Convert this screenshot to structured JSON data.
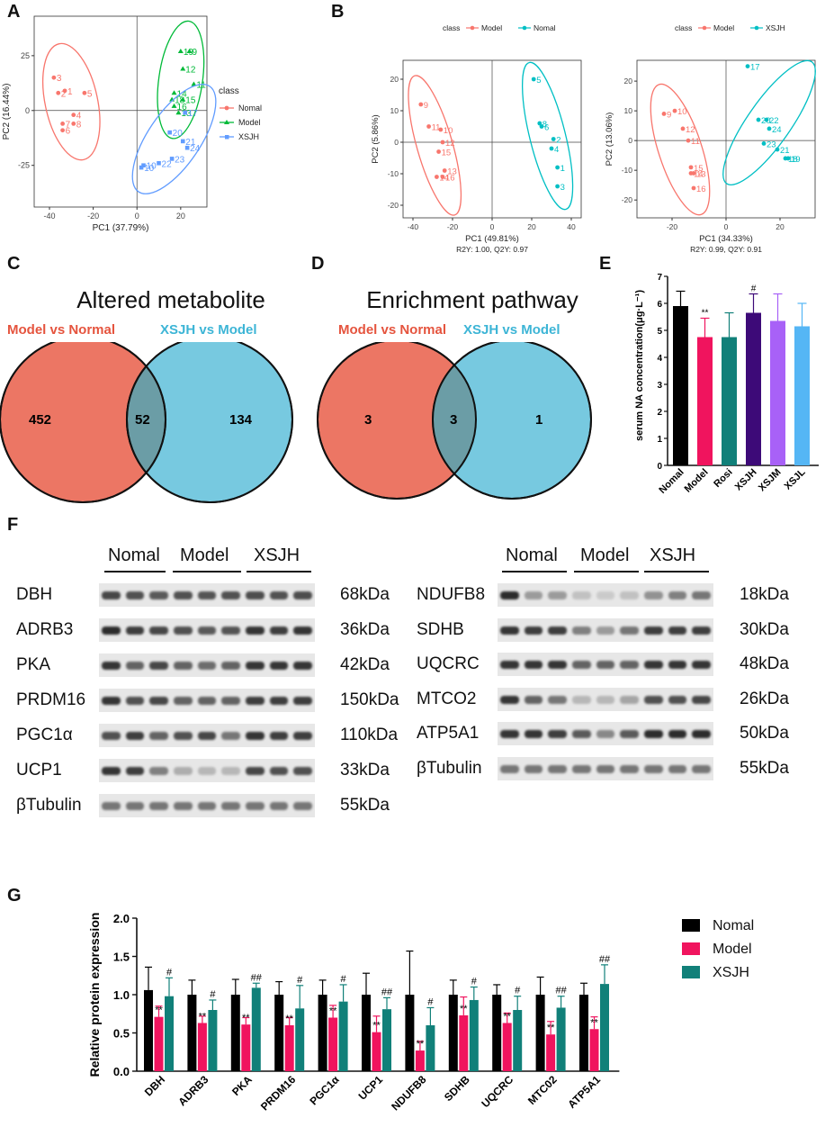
{
  "panel_letters": [
    "A",
    "B",
    "C",
    "D",
    "E",
    "F",
    "G"
  ],
  "colors": {
    "normal": "#f8766d",
    "model_green": "#00ba38",
    "xsjh_blue": "#619cff",
    "nomal_teal": "#00bfc4",
    "venn_red": "#ec7664",
    "venn_blue": "#77c9e0",
    "venn_overlap": "#6b9da6",
    "bar_black": "#000000",
    "bar_pink": "#f0145e",
    "bar_teal": "#118079",
    "bar_purple": "#3d0a78",
    "bar_lavender": "#a861f7",
    "bar_lightblue": "#55b6f5"
  },
  "chart_data": [
    {
      "id": "A",
      "type": "scatter",
      "xlabel": "PC1 (37.79%)",
      "ylabel": "PC2 (16.44%)",
      "xticks": [
        -40,
        -20,
        0,
        20
      ],
      "yticks": [
        -25,
        0,
        25
      ],
      "xlim": [
        -47,
        32
      ],
      "ylim": [
        -44,
        43
      ],
      "legend_title": "class",
      "series": [
        {
          "name": "Nomal",
          "color": "#f8766d",
          "marker": "circle",
          "points": [
            {
              "x": -38,
              "y": 15,
              "label": "3"
            },
            {
              "x": -36,
              "y": 8,
              "label": "2"
            },
            {
              "x": -33,
              "y": 9,
              "label": "1"
            },
            {
              "x": -24,
              "y": 8,
              "label": "5"
            },
            {
              "x": -29,
              "y": -2,
              "label": "4"
            },
            {
              "x": -34,
              "y": -6,
              "label": "7"
            },
            {
              "x": -29,
              "y": -6,
              "label": "8"
            },
            {
              "x": -34,
              "y": -9,
              "label": "6"
            }
          ],
          "ellipse": {
            "cx": -30,
            "cy": 4,
            "rx": 12,
            "ry": 27,
            "angle": -12
          }
        },
        {
          "name": "Model",
          "color": "#00ba38",
          "marker": "triangle",
          "points": [
            {
              "x": 20,
              "y": 27,
              "label": "19"
            },
            {
              "x": 24,
              "y": 27,
              "label": "9"
            },
            {
              "x": 21,
              "y": 19,
              "label": "12"
            },
            {
              "x": 26,
              "y": 12,
              "label": "11"
            },
            {
              "x": 17,
              "y": 8,
              "label": "14"
            },
            {
              "x": 16,
              "y": 5,
              "label": "18"
            },
            {
              "x": 21,
              "y": 5,
              "label": "15"
            },
            {
              "x": 17,
              "y": 2,
              "label": "16"
            },
            {
              "x": 19,
              "y": -1,
              "label": "13"
            }
          ],
          "ellipse": {
            "cx": 20,
            "cy": 14,
            "rx": 10,
            "ry": 27,
            "angle": 8
          }
        },
        {
          "name": "XSJH",
          "color": "#619cff",
          "marker": "square",
          "points": [
            {
              "x": 22,
              "y": -1,
              "label": "17"
            },
            {
              "x": 15,
              "y": -10,
              "label": "20"
            },
            {
              "x": 21,
              "y": -14,
              "label": "21"
            },
            {
              "x": 23,
              "y": -17,
              "label": "24"
            },
            {
              "x": 16,
              "y": -22,
              "label": "23"
            },
            {
              "x": 10,
              "y": -24,
              "label": "22"
            },
            {
              "x": 3,
              "y": -25,
              "label": "10"
            },
            {
              "x": 2,
              "y": -26,
              "label": "10"
            }
          ],
          "ellipse": {
            "cx": 17,
            "cy": -13,
            "rx": 12,
            "ry": 29,
            "angle": 34
          }
        }
      ]
    },
    {
      "id": "B1",
      "type": "scatter",
      "legend_title": "class",
      "legend": [
        "Model",
        "Nomal"
      ],
      "xlabel": "PC1 (49.81%)",
      "ylabel": "PC2 (5.86%)",
      "footer": "R2Y: 1.00, Q2Y: 0.97",
      "xticks": [
        -40,
        -20,
        0,
        20,
        40
      ],
      "yticks": [
        -20,
        -10,
        0,
        10,
        20
      ],
      "xlim": [
        -45,
        45
      ],
      "ylim": [
        -24,
        26
      ],
      "series": [
        {
          "name": "Model",
          "color": "#f8766d",
          "points": [
            {
              "x": -36,
              "y": 12,
              "label": "9"
            },
            {
              "x": -32,
              "y": 5,
              "label": "11"
            },
            {
              "x": -26,
              "y": 4,
              "label": "10"
            },
            {
              "x": -25,
              "y": 0,
              "label": "12"
            },
            {
              "x": -27,
              "y": -3,
              "label": "15"
            },
            {
              "x": -24,
              "y": -9,
              "label": "13"
            },
            {
              "x": -25,
              "y": -11,
              "label": "16"
            },
            {
              "x": -28,
              "y": -11,
              "label": "14"
            }
          ],
          "ellipse": {
            "cx": -29,
            "cy": -1,
            "rx": 9,
            "ry": 23,
            "angle": -16
          }
        },
        {
          "name": "Nomal",
          "color": "#00bfc4",
          "points": [
            {
              "x": 21,
              "y": 20,
              "label": "5"
            },
            {
              "x": 24,
              "y": 6,
              "label": "8"
            },
            {
              "x": 25,
              "y": 5,
              "label": "6"
            },
            {
              "x": 31,
              "y": 1,
              "label": "2"
            },
            {
              "x": 30,
              "y": -2,
              "label": "4"
            },
            {
              "x": 33,
              "y": -8,
              "label": "1"
            },
            {
              "x": 33,
              "y": -14,
              "label": "3"
            }
          ],
          "ellipse": {
            "cx": 28,
            "cy": 2,
            "rx": 9,
            "ry": 24,
            "angle": -14
          }
        }
      ]
    },
    {
      "id": "B2",
      "type": "scatter",
      "legend_title": "class",
      "legend": [
        "Model",
        "XSJH"
      ],
      "xlabel": "PC1 (34.33%)",
      "ylabel": "PC2 (13.06%)",
      "footer": "R2Y: 0.99, Q2Y: 0.91",
      "xticks": [
        -20,
        0,
        20
      ],
      "yticks": [
        -20,
        -10,
        0,
        10,
        20
      ],
      "xlim": [
        -33,
        33
      ],
      "ylim": [
        -26,
        27
      ],
      "series": [
        {
          "name": "Model",
          "color": "#f8766d",
          "points": [
            {
              "x": -23,
              "y": 9,
              "label": "9"
            },
            {
              "x": -19,
              "y": 10,
              "label": "10"
            },
            {
              "x": -16,
              "y": 4,
              "label": "12"
            },
            {
              "x": -14,
              "y": 0,
              "label": "11"
            },
            {
              "x": -13,
              "y": -9,
              "label": "15"
            },
            {
              "x": -12,
              "y": -11,
              "label": "13"
            },
            {
              "x": -13,
              "y": -11,
              "label": "14"
            },
            {
              "x": -12,
              "y": -16,
              "label": "16"
            }
          ],
          "ellipse": {
            "cx": -17,
            "cy": -3,
            "rx": 8,
            "ry": 23,
            "angle": -18
          }
        },
        {
          "name": "XSJH",
          "color": "#00bfc4",
          "points": [
            {
              "x": 8,
              "y": 25,
              "label": "17"
            },
            {
              "x": 12,
              "y": 7,
              "label": "20"
            },
            {
              "x": 15,
              "y": 7,
              "label": "22"
            },
            {
              "x": 16,
              "y": 4,
              "label": "24"
            },
            {
              "x": 14,
              "y": -1,
              "label": "23"
            },
            {
              "x": 19,
              "y": -3,
              "label": "21"
            },
            {
              "x": 22,
              "y": -6,
              "label": "18"
            },
            {
              "x": 23,
              "y": -6,
              "label": "19"
            }
          ],
          "ellipse": {
            "cx": 16,
            "cy": 6,
            "rx": 8,
            "ry": 25,
            "angle": 35
          }
        }
      ]
    },
    {
      "id": "E",
      "type": "bar",
      "ylabel": "serum NA concentration(μg·L⁻¹)",
      "yticks": [
        0,
        1,
        2,
        3,
        4,
        5,
        6,
        7
      ],
      "ylim": [
        0,
        7
      ],
      "categories": [
        "Nomal",
        "Model",
        "Rosi",
        "XSJH",
        "XSJM",
        "XSJL"
      ],
      "values": [
        5.9,
        4.75,
        4.75,
        5.65,
        5.35,
        5.15
      ],
      "errors": [
        0.55,
        0.7,
        0.9,
        0.7,
        1.0,
        0.85
      ],
      "colors": [
        "#000000",
        "#f0145e",
        "#118079",
        "#3d0a78",
        "#a861f7",
        "#55b6f5"
      ],
      "annotations": [
        "",
        "**",
        "",
        "#",
        "",
        ""
      ]
    },
    {
      "id": "G",
      "type": "bar",
      "ylabel": "Relative protein expression",
      "yticks": [
        "0.0",
        "0.5",
        "1.0",
        "1.5",
        "2.0"
      ],
      "ylim": [
        0,
        2.0
      ],
      "categories": [
        "DBH",
        "ADRB3",
        "PKA",
        "PRDM16",
        "PGC1α",
        "UCP1",
        "NDUFB8",
        "SDHB",
        "UQCRC",
        "MTC02",
        "ATP5A1"
      ],
      "series": [
        {
          "name": "Nomal",
          "color": "#000000",
          "values": [
            1.06,
            1.0,
            1.0,
            1.0,
            1.0,
            1.0,
            1.0,
            1.0,
            1.0,
            1.0,
            1.0
          ],
          "errors": [
            0.3,
            0.19,
            0.2,
            0.17,
            0.19,
            0.28,
            0.57,
            0.19,
            0.13,
            0.23,
            0.15
          ],
          "annotations": [
            "",
            "",
            "",
            "",
            "",
            "",
            "",
            "",
            "",
            "",
            ""
          ]
        },
        {
          "name": "Model",
          "color": "#f0145e",
          "values": [
            0.71,
            0.63,
            0.61,
            0.6,
            0.7,
            0.51,
            0.27,
            0.73,
            0.63,
            0.48,
            0.55
          ],
          "errors": [
            0.14,
            0.09,
            0.09,
            0.1,
            0.16,
            0.21,
            0.12,
            0.24,
            0.13,
            0.17,
            0.16
          ],
          "annotations": [
            "**",
            "**",
            "**",
            "**",
            "**",
            "**",
            "**",
            "**",
            "**",
            "**",
            "**"
          ]
        },
        {
          "name": "XSJH",
          "color": "#118079",
          "values": [
            0.98,
            0.8,
            1.09,
            0.82,
            0.91,
            0.81,
            0.6,
            0.93,
            0.8,
            0.83,
            1.14
          ],
          "errors": [
            0.24,
            0.13,
            0.06,
            0.3,
            0.22,
            0.15,
            0.23,
            0.17,
            0.18,
            0.15,
            0.25
          ],
          "annotations": [
            "#",
            "#",
            "##",
            "#",
            "#",
            "##",
            "#",
            "#",
            "#",
            "##",
            "##"
          ]
        }
      ]
    }
  ],
  "venn": [
    {
      "id": "C",
      "title": "Altered metabolite",
      "left_label": "Model vs Normal",
      "right_label": "XSJH vs Model",
      "left_only": "452",
      "overlap": "52",
      "right_only": "134"
    },
    {
      "id": "D",
      "title": "Enrichment pathway",
      "left_label": "Model vs Normal",
      "right_label": "XSJH vs Model",
      "left_only": "3",
      "overlap": "3",
      "right_only": "1"
    }
  ],
  "blots": {
    "groups": [
      "Nomal",
      "Model",
      "XSJH"
    ],
    "left": [
      {
        "protein": "DBH",
        "kda": "68kDa",
        "intensity": [
          0.85,
          0.8,
          0.75,
          0.8,
          0.78,
          0.8,
          0.82,
          0.8,
          0.82
        ]
      },
      {
        "protein": "ADRB3",
        "kda": "36kDa",
        "intensity": [
          1.0,
          0.9,
          0.85,
          0.8,
          0.75,
          0.78,
          0.95,
          0.9,
          0.95
        ]
      },
      {
        "protein": "PKA",
        "kda": "42kDa",
        "intensity": [
          0.95,
          0.7,
          0.85,
          0.7,
          0.65,
          0.7,
          0.95,
          0.95,
          0.95
        ]
      },
      {
        "protein": "PRDM16",
        "kda": "150kDa",
        "intensity": [
          0.95,
          0.8,
          0.85,
          0.7,
          0.7,
          0.7,
          0.9,
          0.9,
          0.9
        ]
      },
      {
        "protein": "PGC1α",
        "kda": "110kDa",
        "intensity": [
          0.8,
          0.9,
          0.7,
          0.8,
          0.85,
          0.6,
          0.95,
          0.9,
          0.9
        ]
      },
      {
        "protein": "UCP1",
        "kda": "33kDa",
        "intensity": [
          0.95,
          0.9,
          0.55,
          0.3,
          0.25,
          0.25,
          0.85,
          0.8,
          0.8
        ]
      },
      {
        "protein": "βTubulin",
        "kda": "55kDa",
        "intensity": [
          0.6,
          0.6,
          0.6,
          0.6,
          0.6,
          0.6,
          0.6,
          0.6,
          0.6
        ]
      }
    ],
    "right": [
      {
        "protein": "NDUFB8",
        "kda": "18kDa",
        "intensity": [
          1.0,
          0.4,
          0.4,
          0.2,
          0.15,
          0.2,
          0.45,
          0.55,
          0.6
        ]
      },
      {
        "protein": "SDHB",
        "kda": "30kDa",
        "intensity": [
          0.95,
          0.9,
          0.9,
          0.55,
          0.4,
          0.6,
          0.9,
          0.9,
          0.9
        ]
      },
      {
        "protein": "UQCRC",
        "kda": "48kDa",
        "intensity": [
          0.95,
          0.95,
          0.95,
          0.7,
          0.7,
          0.7,
          0.95,
          0.95,
          0.95
        ]
      },
      {
        "protein": "MTCO2",
        "kda": "26kDa",
        "intensity": [
          0.95,
          0.7,
          0.6,
          0.25,
          0.25,
          0.35,
          0.8,
          0.8,
          0.85
        ]
      },
      {
        "protein": "ATP5A1",
        "kda": "50kDa",
        "intensity": [
          0.95,
          0.95,
          0.9,
          0.75,
          0.5,
          0.75,
          1.0,
          1.0,
          1.0
        ]
      },
      {
        "protein": "βTubulin",
        "kda": "55kDa",
        "intensity": [
          0.6,
          0.6,
          0.6,
          0.6,
          0.6,
          0.6,
          0.6,
          0.6,
          0.6
        ]
      }
    ]
  }
}
